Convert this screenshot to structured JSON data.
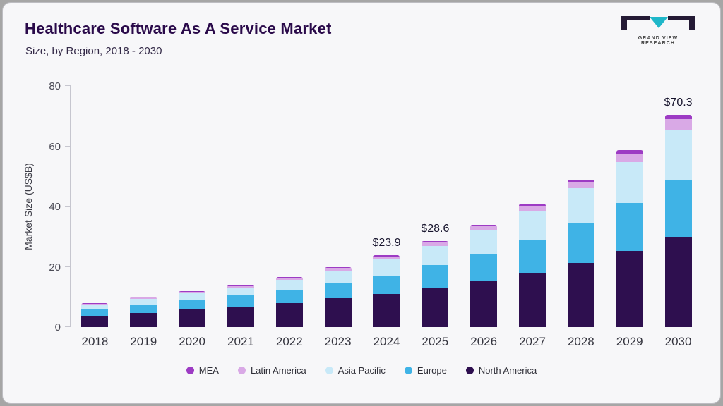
{
  "header": {
    "title": "Healthcare Software As A Service Market",
    "subtitle": "Size, by Region, 2018 - 2030",
    "logo_text": "GRAND VIEW RESEARCH"
  },
  "colors": {
    "logo_dark": "#241a35",
    "logo_teal": "#1fb7c9",
    "title_purple": "#2a0a4a"
  },
  "chart_data": {
    "type": "bar",
    "stacked": true,
    "title": "Healthcare Software As A Service Market Size, by Region, 2018 - 2030",
    "xlabel": "",
    "ylabel": "Market Size (US$B)",
    "ylim": [
      0,
      80
    ],
    "yticks": [
      0,
      20,
      40,
      60,
      80
    ],
    "grid": false,
    "legend_position": "bottom",
    "categories": [
      "2018",
      "2019",
      "2020",
      "2021",
      "2022",
      "2023",
      "2024",
      "2025",
      "2026",
      "2027",
      "2028",
      "2029",
      "2030"
    ],
    "series": [
      {
        "name": "North America",
        "color": "#2e0f4f",
        "values": [
          3.8,
          4.8,
          5.8,
          6.8,
          8.0,
          9.5,
          11.0,
          13.0,
          15.2,
          18.0,
          21.3,
          25.2,
          30.0
        ]
      },
      {
        "name": "Europe",
        "color": "#3fb3e6",
        "values": [
          2.2,
          2.7,
          3.2,
          3.8,
          4.5,
          5.3,
          6.2,
          7.5,
          8.9,
          10.8,
          13.0,
          15.9,
          19.0
        ]
      },
      {
        "name": "Asia Pacific",
        "color": "#c8e9f8",
        "values": [
          1.4,
          1.8,
          2.2,
          2.6,
          3.1,
          4.0,
          5.2,
          6.4,
          7.9,
          9.6,
          11.7,
          13.7,
          16.3
        ]
      },
      {
        "name": "Latin America",
        "color": "#d9a9e6",
        "values": [
          0.4,
          0.5,
          0.5,
          0.5,
          0.6,
          0.8,
          1.0,
          1.2,
          1.4,
          1.8,
          2.2,
          2.8,
          3.7
        ]
      },
      {
        "name": "MEA",
        "color": "#9d3bc4",
        "values": [
          0.2,
          0.2,
          0.3,
          0.3,
          0.3,
          0.4,
          0.5,
          0.5,
          0.6,
          0.8,
          0.8,
          1.0,
          1.3
        ]
      }
    ],
    "annotations": [
      {
        "category": "2024",
        "text": "$23.9"
      },
      {
        "category": "2025",
        "text": "$28.6"
      },
      {
        "category": "2030",
        "text": "$70.3"
      }
    ],
    "legend": [
      "MEA",
      "Latin America",
      "Asia Pacific",
      "Europe",
      "North America"
    ]
  }
}
